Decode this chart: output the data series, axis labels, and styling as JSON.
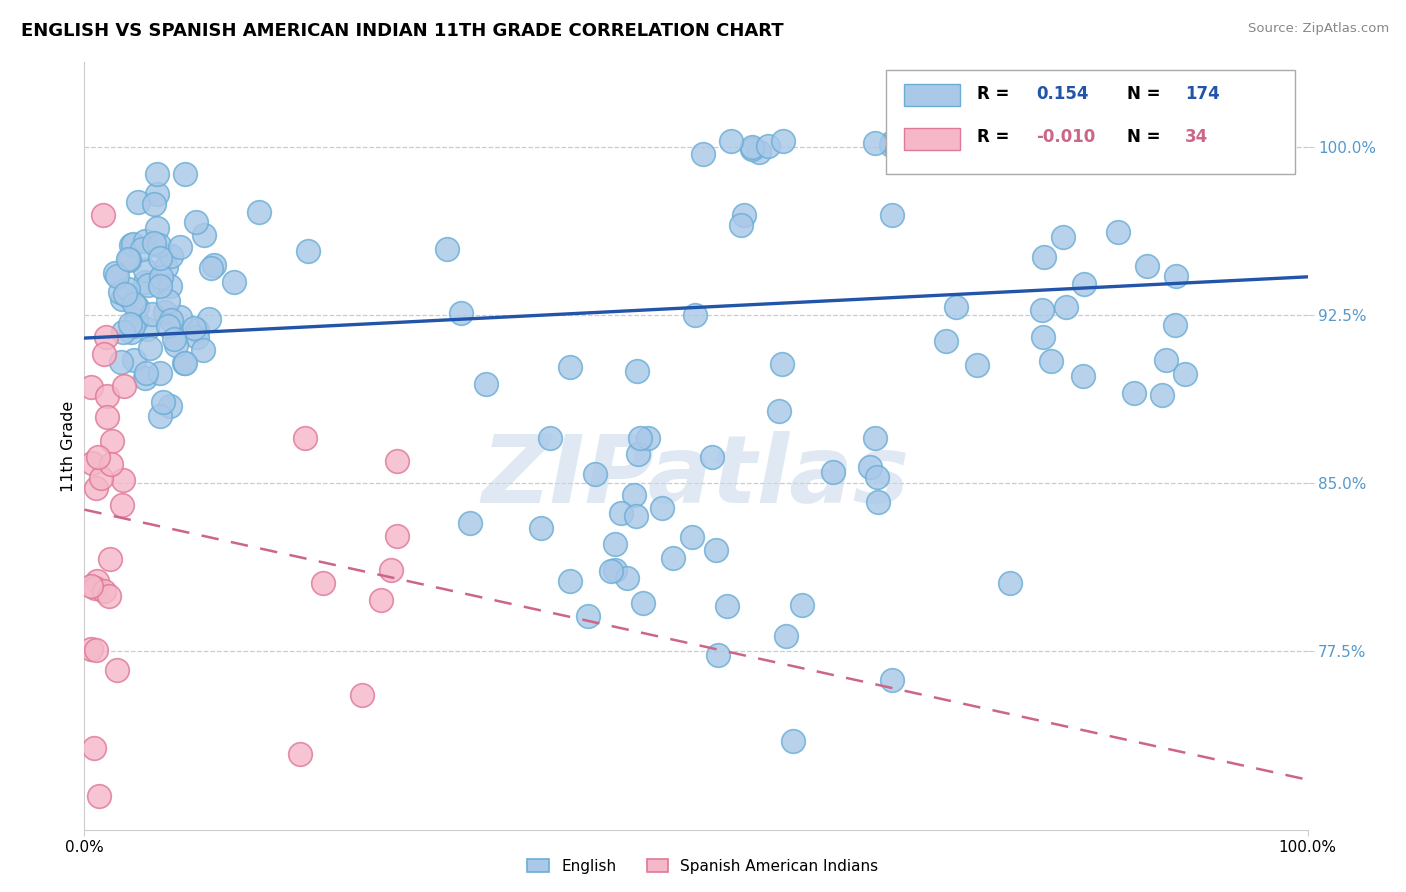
{
  "title": "ENGLISH VS SPANISH AMERICAN INDIAN 11TH GRADE CORRELATION CHART",
  "source": "Source: ZipAtlas.com",
  "ylabel": "11th Grade",
  "y_ticks": [
    0.775,
    0.85,
    0.925,
    1.0
  ],
  "y_tick_labels": [
    "77.5%",
    "85.0%",
    "92.5%",
    "100.0%"
  ],
  "x_range": [
    0.0,
    1.0
  ],
  "y_range": [
    0.695,
    1.038
  ],
  "blue_R": 0.154,
  "blue_N": 174,
  "pink_R": -0.01,
  "pink_N": 34,
  "legend_labels": [
    "English",
    "Spanish American Indians"
  ],
  "blue_color": "#aac8e8",
  "blue_edge": "#6aaed6",
  "pink_color": "#f4b8c8",
  "pink_edge": "#e07898",
  "blue_line_color": "#2255aa",
  "pink_line_color": "#cc6688",
  "watermark_color": "#c8d8ea",
  "tick_color": "#5599cc"
}
